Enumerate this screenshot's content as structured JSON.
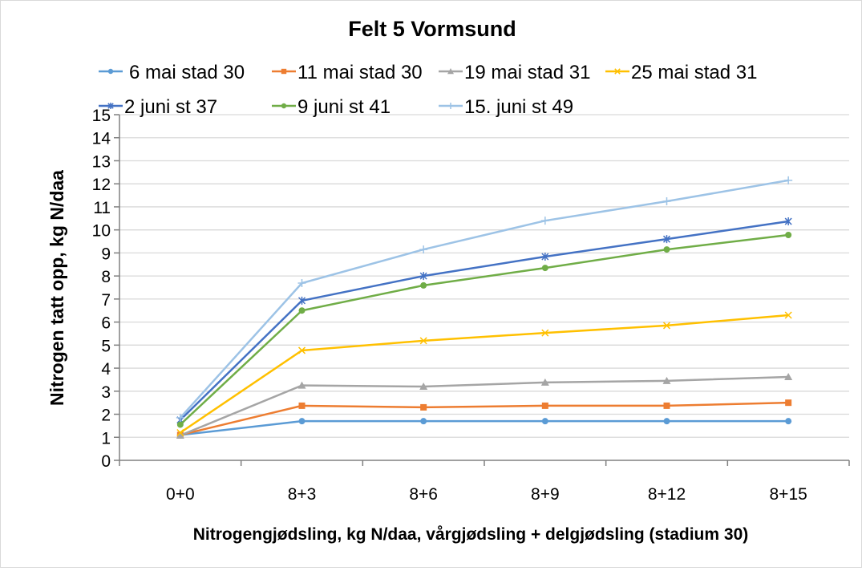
{
  "chart_data": {
    "type": "line",
    "title": "Felt 5 Vormsund",
    "xlabel": "Nitrogengjødsling, kg N/daa, vårgjødsling + delgjødsling (stadium 30)",
    "ylabel": "Nitrogen tatt opp, kg N/daa",
    "categories": [
      "0+0",
      "8+3",
      "8+6",
      "8+9",
      "8+12",
      "8+15"
    ],
    "ylim": [
      0,
      15
    ],
    "yticks": [
      0,
      1,
      2,
      3,
      4,
      5,
      6,
      7,
      8,
      9,
      10,
      11,
      12,
      13,
      14,
      15
    ],
    "grid": true,
    "legend_position": "top",
    "series": [
      {
        "name": "6 mai stad 30",
        "color": "#5b9bd5",
        "marker": "circle",
        "values": [
          1.1,
          1.7,
          1.7,
          1.7,
          1.7,
          1.7
        ]
      },
      {
        "name": "11 mai stad 30",
        "color": "#ed7d31",
        "marker": "square",
        "values": [
          1.1,
          2.37,
          2.3,
          2.37,
          2.37,
          2.5
        ]
      },
      {
        "name": "19 mai stad 31",
        "color": "#a5a5a5",
        "marker": "triangle",
        "values": [
          1.08,
          3.25,
          3.2,
          3.38,
          3.45,
          3.62
        ]
      },
      {
        "name": "25 mai stad 31",
        "color": "#ffc000",
        "marker": "x",
        "values": [
          1.2,
          4.77,
          5.19,
          5.53,
          5.85,
          6.3
        ]
      },
      {
        "name": "2 juni st 37",
        "color": "#4472c4",
        "marker": "star",
        "values": [
          1.75,
          6.93,
          8.0,
          8.84,
          9.6,
          10.37
        ]
      },
      {
        "name": "9 juni st 41",
        "color": "#70ad47",
        "marker": "circle",
        "values": [
          1.55,
          6.5,
          7.59,
          8.35,
          9.15,
          9.78
        ]
      },
      {
        "name": "15. juni st 49",
        "color": "#9dc3e6",
        "marker": "plus",
        "values": [
          1.85,
          7.69,
          9.15,
          10.4,
          11.24,
          12.15
        ]
      }
    ]
  }
}
